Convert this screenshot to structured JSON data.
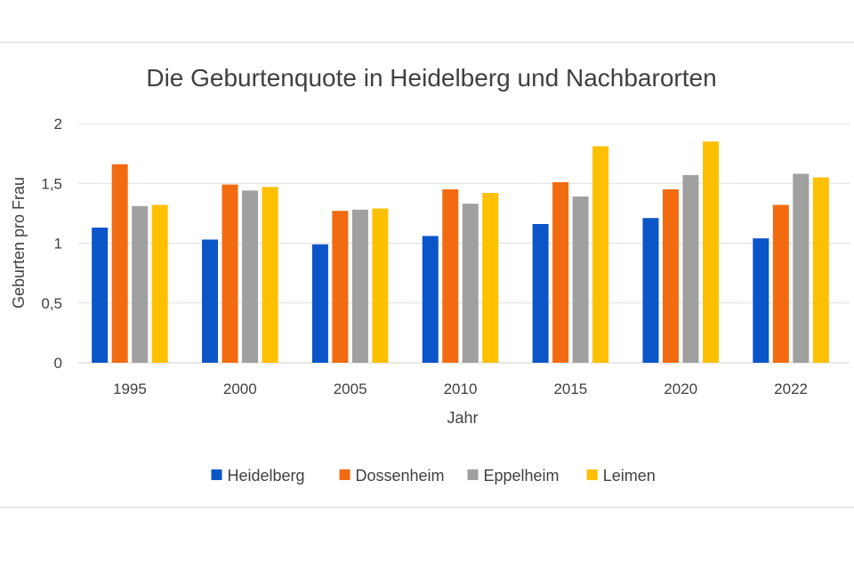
{
  "chart_data": {
    "type": "bar",
    "title": "Die Geburtenquote in Heidelberg und Nachbarorten",
    "xlabel": "Jahr",
    "ylabel": "Geburten pro Frau",
    "categories": [
      "1995",
      "2000",
      "2005",
      "2010",
      "2015",
      "2020",
      "2022"
    ],
    "ylim": [
      0,
      2
    ],
    "yticks": [
      "0",
      "0,5",
      "1",
      "1,5",
      "2"
    ],
    "grid": true,
    "legend": "bottom",
    "series": [
      {
        "name": "Heidelberg",
        "color": "#0a55c8",
        "values": [
          1.13,
          1.03,
          0.99,
          1.06,
          1.16,
          1.21,
          1.04
        ]
      },
      {
        "name": "Dossenheim",
        "color": "#f26b10",
        "values": [
          1.66,
          1.49,
          1.27,
          1.45,
          1.51,
          1.45,
          1.32
        ]
      },
      {
        "name": "Eppelheim",
        "color": "#a0a0a0",
        "values": [
          1.31,
          1.44,
          1.28,
          1.33,
          1.39,
          1.57,
          1.58
        ]
      },
      {
        "name": "Leimen",
        "color": "#ffc000",
        "values": [
          1.32,
          1.47,
          1.29,
          1.42,
          1.81,
          1.85,
          1.55
        ]
      }
    ]
  }
}
